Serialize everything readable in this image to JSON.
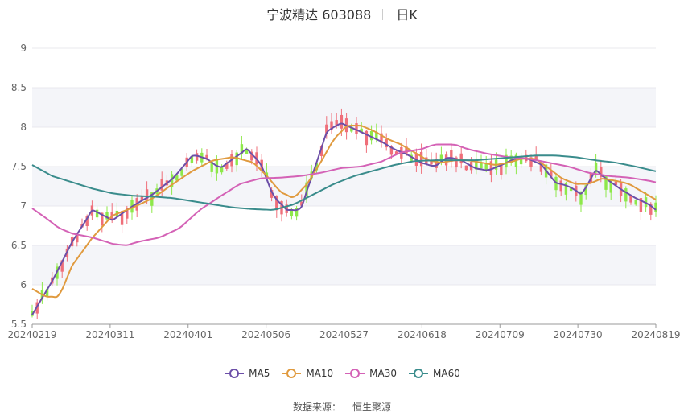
{
  "header": {
    "stock": "宁波精达 603088",
    "period": "日K"
  },
  "source": {
    "label": "数据来源：",
    "value": "恒生聚源"
  },
  "colors": {
    "up": "#ef6f7a",
    "down": "#8ee84a",
    "ma5": "#6c4fa8",
    "ma10": "#e09a3e",
    "ma30": "#d462b6",
    "ma60": "#3a8c8c",
    "grid_band": "#f4f5f9"
  },
  "chart_data": {
    "type": "candlestick",
    "title": "宁波精达 603088",
    "subtitle": "日K",
    "x_tick_labels": [
      "20240219",
      "20240311",
      "20240401",
      "20240506",
      "20240527",
      "20240618",
      "20240709",
      "20240730",
      "20240819"
    ],
    "y_ticks": [
      5.5,
      6,
      6.5,
      7,
      7.5,
      8,
      8.5,
      9
    ],
    "ylim": [
      5.5,
      9.0
    ],
    "bar_count": 126,
    "legend_position": "bottom",
    "series": [
      {
        "name": "MA5",
        "color": "#6c4fa8",
        "points": [
          [
            0,
            5.62
          ],
          [
            6,
            6.05
          ],
          [
            12,
            6.55
          ],
          [
            18,
            6.95
          ],
          [
            24,
            6.82
          ],
          [
            30,
            7.0
          ],
          [
            36,
            7.15
          ],
          [
            42,
            7.35
          ],
          [
            48,
            7.65
          ],
          [
            52,
            7.6
          ],
          [
            56,
            7.48
          ],
          [
            60,
            7.6
          ],
          [
            64,
            7.72
          ],
          [
            68,
            7.55
          ],
          [
            72,
            7.12
          ],
          [
            76,
            6.95
          ],
          [
            80,
            6.95
          ],
          [
            84,
            7.45
          ],
          [
            88,
            7.95
          ],
          [
            92,
            8.05
          ],
          [
            96,
            7.98
          ],
          [
            100,
            7.9
          ],
          [
            104,
            7.82
          ],
          [
            108,
            7.72
          ],
          [
            112,
            7.65
          ],
          [
            116,
            7.55
          ],
          [
            120,
            7.5
          ],
          [
            124,
            7.62
          ],
          [
            128,
            7.58
          ],
          [
            132,
            7.48
          ],
          [
            136,
            7.45
          ],
          [
            140,
            7.52
          ],
          [
            144,
            7.6
          ],
          [
            148,
            7.6
          ],
          [
            152,
            7.52
          ],
          [
            156,
            7.3
          ],
          [
            160,
            7.25
          ],
          [
            164,
            7.15
          ],
          [
            168,
            7.45
          ],
          [
            172,
            7.32
          ],
          [
            176,
            7.2
          ],
          [
            180,
            7.1
          ],
          [
            184,
            7.02
          ],
          [
            186,
            6.95
          ]
        ]
      },
      {
        "name": "MA10",
        "color": "#e09a3e",
        "points": [
          [
            0,
            5.95
          ],
          [
            4,
            5.85
          ],
          [
            8,
            5.85
          ],
          [
            12,
            6.25
          ],
          [
            18,
            6.6
          ],
          [
            24,
            6.88
          ],
          [
            30,
            6.98
          ],
          [
            36,
            7.1
          ],
          [
            42,
            7.28
          ],
          [
            48,
            7.45
          ],
          [
            54,
            7.58
          ],
          [
            60,
            7.62
          ],
          [
            66,
            7.55
          ],
          [
            70,
            7.38
          ],
          [
            74,
            7.18
          ],
          [
            78,
            7.1
          ],
          [
            82,
            7.28
          ],
          [
            86,
            7.55
          ],
          [
            90,
            7.85
          ],
          [
            94,
            8.02
          ],
          [
            98,
            8.02
          ],
          [
            102,
            7.95
          ],
          [
            106,
            7.85
          ],
          [
            110,
            7.78
          ],
          [
            114,
            7.68
          ],
          [
            118,
            7.58
          ],
          [
            122,
            7.55
          ],
          [
            126,
            7.58
          ],
          [
            130,
            7.58
          ],
          [
            134,
            7.55
          ],
          [
            138,
            7.52
          ],
          [
            142,
            7.55
          ],
          [
            146,
            7.6
          ],
          [
            150,
            7.6
          ],
          [
            154,
            7.48
          ],
          [
            158,
            7.35
          ],
          [
            162,
            7.28
          ],
          [
            166,
            7.28
          ],
          [
            170,
            7.35
          ],
          [
            174,
            7.32
          ],
          [
            178,
            7.28
          ],
          [
            182,
            7.18
          ],
          [
            186,
            7.08
          ]
        ]
      },
      {
        "name": "MA30",
        "color": "#d462b6",
        "points": [
          [
            0,
            6.97
          ],
          [
            4,
            6.85
          ],
          [
            8,
            6.72
          ],
          [
            12,
            6.65
          ],
          [
            18,
            6.6
          ],
          [
            24,
            6.52
          ],
          [
            28,
            6.5
          ],
          [
            32,
            6.55
          ],
          [
            38,
            6.6
          ],
          [
            44,
            6.72
          ],
          [
            50,
            6.95
          ],
          [
            56,
            7.12
          ],
          [
            62,
            7.28
          ],
          [
            68,
            7.35
          ],
          [
            74,
            7.36
          ],
          [
            80,
            7.38
          ],
          [
            86,
            7.42
          ],
          [
            92,
            7.48
          ],
          [
            98,
            7.5
          ],
          [
            104,
            7.56
          ],
          [
            110,
            7.68
          ],
          [
            116,
            7.72
          ],
          [
            120,
            7.78
          ],
          [
            126,
            7.78
          ],
          [
            130,
            7.72
          ],
          [
            136,
            7.66
          ],
          [
            142,
            7.62
          ],
          [
            148,
            7.6
          ],
          [
            154,
            7.55
          ],
          [
            160,
            7.5
          ],
          [
            166,
            7.42
          ],
          [
            172,
            7.38
          ],
          [
            178,
            7.36
          ],
          [
            184,
            7.32
          ],
          [
            186,
            7.3
          ]
        ]
      },
      {
        "name": "MA60",
        "color": "#3a8c8c",
        "points": [
          [
            0,
            7.52
          ],
          [
            6,
            7.38
          ],
          [
            12,
            7.3
          ],
          [
            18,
            7.22
          ],
          [
            24,
            7.16
          ],
          [
            30,
            7.13
          ],
          [
            36,
            7.12
          ],
          [
            42,
            7.1
          ],
          [
            48,
            7.06
          ],
          [
            54,
            7.02
          ],
          [
            60,
            6.98
          ],
          [
            66,
            6.96
          ],
          [
            72,
            6.95
          ],
          [
            78,
            7.02
          ],
          [
            84,
            7.15
          ],
          [
            90,
            7.28
          ],
          [
            96,
            7.38
          ],
          [
            102,
            7.45
          ],
          [
            108,
            7.52
          ],
          [
            114,
            7.57
          ],
          [
            120,
            7.58
          ],
          [
            126,
            7.58
          ],
          [
            132,
            7.58
          ],
          [
            138,
            7.6
          ],
          [
            144,
            7.62
          ],
          [
            150,
            7.64
          ],
          [
            156,
            7.64
          ],
          [
            162,
            7.62
          ],
          [
            168,
            7.58
          ],
          [
            174,
            7.55
          ],
          [
            180,
            7.5
          ],
          [
            186,
            7.44
          ]
        ]
      }
    ]
  }
}
